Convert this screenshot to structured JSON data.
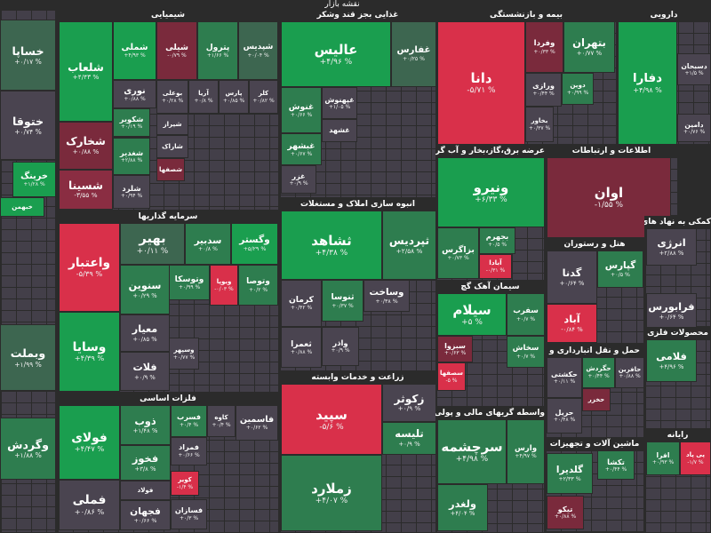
{
  "title": "نقشه بازار",
  "sectors": [
    {
      "tiles": [
        {
          "name": "خساپا",
          "change": "+۰/۱۷ %",
          "color": "#3d6650"
        },
        {
          "name": "ختوقا",
          "change": "+۰/۷۴ %",
          "color": "#4a4450"
        },
        {
          "name": "خرینگ",
          "change": "+۱/۲۸ %",
          "color": "#1a9e4f"
        },
        {
          "name": "خبهمن",
          "change": "+۱/۳۸ %",
          "color": "#1a9e4f"
        },
        {
          "name": "وبملت",
          "change": "+۱/۹۹ %",
          "color": "#3d6650"
        },
        {
          "name": "وگردش",
          "change": "+۱/۸۸ %",
          "color": "#2e7d4f"
        }
      ]
    },
    {
      "title": "شیمیایی",
      "tiles": [
        {
          "name": "شلعاب",
          "change": "+۴/۴۳ %",
          "color": "#1a9e4f"
        },
        {
          "name": "شخارک",
          "change": "+۰/۸۸ %",
          "color": "#7a2a3c"
        },
        {
          "name": "شسینا",
          "change": "-۳/۵۵ %",
          "color": "#8a2d42"
        },
        {
          "name": "شملی",
          "change": "+۴/۹۳ %",
          "color": "#1a9e4f"
        },
        {
          "name": "شیلی",
          "change": "-۰/۷۹ %",
          "color": "#7a2a3c"
        },
        {
          "name": "پترول",
          "change": "+۱/۶۶ %",
          "color": "#2e7d4f"
        },
        {
          "name": "شپدیس",
          "change": "+۰/۰۴ %",
          "color": "#3d6650"
        },
        {
          "name": "نوری",
          "change": "+۰/۸۸ %",
          "color": "#4a4450"
        },
        {
          "name": "بوعلی",
          "change": "+۰/۲۸ %",
          "color": "#4a4450"
        },
        {
          "name": "آریا",
          "change": "+۰/۸ %",
          "color": "#4a4450"
        },
        {
          "name": "پارس",
          "change": "+۰/۸۵ %",
          "color": "#4a4450"
        },
        {
          "name": "کلر",
          "change": "+۰/۸۲ %",
          "color": "#4a4450"
        },
        {
          "name": "شکویر",
          "change": "+۰/۱۹ %",
          "color": "#2e7d4f"
        },
        {
          "name": "شیراز",
          "change": "+۰/۴ %",
          "color": "#4a4450"
        },
        {
          "name": "شغدیر",
          "change": "+۲/۸۸ %",
          "color": "#2e7d4f"
        },
        {
          "name": "شاراک",
          "change": "+۰/۷۹ %",
          "color": "#4a4450"
        },
        {
          "name": "شصفها",
          "change": "-۰/۷ %",
          "color": "#7a2a3c"
        },
        {
          "name": "شلرد",
          "change": "+۰/۹۴ %",
          "color": "#4a4450"
        }
      ]
    },
    {
      "title": "غذایی بجز قند وشکر",
      "tiles": [
        {
          "name": "عالیس",
          "change": "+۴/۹۶ %",
          "color": "#1a9e4f"
        },
        {
          "name": "غفارس",
          "change": "+۰/۲۵ %",
          "color": "#3d6650"
        },
        {
          "name": "غنوش",
          "change": "+۰/۶۶ %",
          "color": "#2e7d4f"
        },
        {
          "name": "غپهنوش",
          "change": "+۱/۰۵ %",
          "color": "#4a4450"
        },
        {
          "name": "غشهد",
          "change": "+۰/۴ %",
          "color": "#4a4450"
        },
        {
          "name": "غبشهر",
          "change": "+۰/۶۷ %",
          "color": "#2e7d4f"
        },
        {
          "name": "غزر",
          "change": "+۰/۹ %",
          "color": "#4a4450"
        }
      ]
    },
    {
      "title": "بیمه و بازنشستگی",
      "tiles": [
        {
          "name": "دانا",
          "change": "-۵/۷۱ %",
          "color": "#d9304a"
        },
        {
          "name": "وفردا",
          "change": "+۰/۳۳ %",
          "color": "#7a2a3c"
        },
        {
          "name": "بتهران",
          "change": "+۰/۷۷ %",
          "color": "#2e7d4f"
        },
        {
          "name": "ورازی",
          "change": "+۰/۴۴ %",
          "color": "#4a4450"
        },
        {
          "name": "دوین",
          "change": "+۰/۹۹ %",
          "color": "#2e7d4f"
        },
        {
          "name": "بخاور",
          "change": "+۰/۳۷ %",
          "color": "#4a4450"
        }
      ]
    },
    {
      "title": "دارویی",
      "tiles": [
        {
          "name": "دفارا",
          "change": "+۴/۹۸ %",
          "color": "#1a9e4f"
        },
        {
          "name": "دسبحان",
          "change": "+۱/۵ %",
          "color": "#4a4450"
        },
        {
          "name": "دامین",
          "change": "+۰/۷۶ %",
          "color": "#4a4450"
        }
      ]
    },
    {
      "title": "عرضه برق،گاز،بخار و آب گرم",
      "tiles": [
        {
          "name": "ونیرو",
          "change": "+۶/۳۳ %",
          "color": "#1a9e4f"
        },
        {
          "name": "بزاگرس",
          "change": "+۰/۷۳ %",
          "color": "#2e7d4f"
        },
        {
          "name": "بجهرم",
          "change": "+۰/۵ %",
          "color": "#2e7d4f"
        },
        {
          "name": "آبادا",
          "change": "-۰/۳۱ %",
          "color": "#d9304a"
        }
      ]
    },
    {
      "title": "اطلاعات و ارتباطات",
      "tiles": [
        {
          "name": "اوان",
          "change": "-۱/۵۵ %",
          "color": "#7a2a3c"
        }
      ]
    },
    {
      "title": "سرمایه گذاریها",
      "tiles": [
        {
          "name": "واعتبار",
          "change": "-۵/۳۹ %",
          "color": "#d9304a"
        },
        {
          "name": "وسایا",
          "change": "+۴/۳۹ %",
          "color": "#1a9e4f"
        },
        {
          "name": "بهیر",
          "change": "+۰/۱۱ %",
          "color": "#3d6650"
        },
        {
          "name": "سدبیر",
          "change": "+۰/۸ %",
          "color": "#2e7d4f"
        },
        {
          "name": "وگستر",
          "change": "+۵/۲۹ %",
          "color": "#1a9e4f"
        },
        {
          "name": "سنوین",
          "change": "+۰/۲۹ %",
          "color": "#2e7d4f"
        },
        {
          "name": "وتوسکا",
          "change": "+۰/۹۹ %",
          "color": "#2e7d4f"
        },
        {
          "name": "ویوپا",
          "change": "-۰/۰۳ %",
          "color": "#d9304a"
        },
        {
          "name": "وتوصا",
          "change": "+۰/۲ %",
          "color": "#2e7d4f"
        },
        {
          "name": "معیار",
          "change": "+۰/۸۵ %",
          "color": "#4a4450"
        },
        {
          "name": "وسپهر",
          "change": "+۰/۷۷ %",
          "color": "#4a4450"
        },
        {
          "name": "فلات",
          "change": "+۰/۹ %",
          "color": "#4a4450"
        }
      ]
    },
    {
      "title": "فلزات اساسی",
      "tiles": [
        {
          "name": "فولای",
          "change": "+۴/۴۷ %",
          "color": "#1a9e4f"
        },
        {
          "name": "فملی",
          "change": "+۰/۸۶ %",
          "color": "#4a4450"
        },
        {
          "name": "ذوب",
          "change": "+۱/۴۸ %",
          "color": "#2e7d4f"
        },
        {
          "name": "فسرب",
          "change": "+۰/۴ %",
          "color": "#2e7d4f"
        },
        {
          "name": "کاوه",
          "change": "+۰/۴ %",
          "color": "#4a4450"
        },
        {
          "name": "فاسمین",
          "change": "+۰/۶۲ %",
          "color": "#4a4450"
        },
        {
          "name": "فخوز",
          "change": "+۳/۸ %",
          "color": "#2e7d4f"
        },
        {
          "name": "فمراد",
          "change": "+۰/۶۶ %",
          "color": "#4a4450"
        },
        {
          "name": "فولاد",
          "change": "+۰/۳۱ %",
          "color": "#4a4450"
        },
        {
          "name": "کویر",
          "change": "-۱/۴ %",
          "color": "#d9304a"
        },
        {
          "name": "فجهان",
          "change": "+۰/۶۶ %",
          "color": "#4a4450"
        },
        {
          "name": "فسازان",
          "change": "+۰/۳ %",
          "color": "#4a4450"
        }
      ]
    },
    {
      "title": "انبوه سازی املاک و مستغلات",
      "tiles": [
        {
          "name": "ثشاهد",
          "change": "+۴/۳۸ %",
          "color": "#1a9e4f"
        },
        {
          "name": "ثپردیس",
          "change": "+۲/۵۸ %",
          "color": "#2e7d4f"
        },
        {
          "name": "کرمان",
          "change": "+۰/۴۲ %",
          "color": "#4a4450"
        },
        {
          "name": "ثنوسا",
          "change": "+۰/۳۷ %",
          "color": "#2e7d4f"
        },
        {
          "name": "وساخت",
          "change": "+۰/۳۸ %",
          "color": "#4a4450"
        },
        {
          "name": "ثعمرا",
          "change": "+۰/۸۸ %",
          "color": "#4a4450"
        },
        {
          "name": "واذر",
          "change": "+۰/۹ %",
          "color": "#4a4450"
        }
      ]
    },
    {
      "title": "زراعت و خدمات وابسته",
      "tiles": [
        {
          "name": "سپید",
          "change": "-۵/۶ %",
          "color": "#d9304a"
        },
        {
          "name": "زکوثر",
          "change": "+۰/۹ %",
          "color": "#4a4450"
        },
        {
          "name": "تلیسه",
          "change": "+۰/۹ %",
          "color": "#2e7d4f"
        },
        {
          "name": "زملارد",
          "change": "+۴/۰۷ %",
          "color": "#2e7d4f"
        }
      ]
    },
    {
      "title": "سیمان آهک گچ",
      "tiles": [
        {
          "name": "سیلام",
          "change": "+۵ %",
          "color": "#1a9e4f"
        },
        {
          "name": "سفرب",
          "change": "+۰/۷ %",
          "color": "#2e7d4f"
        },
        {
          "name": "سبزوا",
          "change": "+۰/۶۳ %",
          "color": "#7a2a3c"
        },
        {
          "name": "سصفها",
          "change": "-۵ %",
          "color": "#d9304a"
        },
        {
          "name": "سخاش",
          "change": "+۰/۷ %",
          "color": "#2e7d4f"
        }
      ]
    },
    {
      "title": "واسطه گریهای مالی و پولی",
      "tiles": [
        {
          "name": "سرچشمه",
          "change": "+۴/۹۸ %",
          "color": "#2e7d4f"
        },
        {
          "name": "وارس",
          "change": "+۴/۹۷ %",
          "color": "#2e7d4f"
        },
        {
          "name": "ولغدر",
          "change": "+۴/۰۴ %",
          "color": "#2e7d4f"
        }
      ]
    },
    {
      "title": "هتل و رستوران",
      "tiles": [
        {
          "name": "گدنا",
          "change": "+۰/۶۴ %",
          "color": "#4a4450"
        },
        {
          "name": "گپارس",
          "change": "+۰/۵ %",
          "color": "#2e7d4f"
        },
        {
          "name": "آباد",
          "change": "-۰/۸۴ %",
          "color": "#d9304a"
        }
      ]
    },
    {
      "title": "کمکی به نهاد های مالی",
      "tiles": [
        {
          "name": "انرژی",
          "change": "+۲/۸۸ %",
          "color": "#4a4450"
        },
        {
          "name": "فرابورس",
          "change": "+۰/۶۴ %",
          "color": "#4a4450"
        }
      ]
    },
    {
      "title": "حمل و نقل انبارداری و",
      "tiles": [
        {
          "name": "حکشتی",
          "change": "+۰/۱۱ %",
          "color": "#4a4450"
        },
        {
          "name": "حگردش",
          "change": "+۰/۴۴ %",
          "color": "#2e7d4f"
        },
        {
          "name": "حافرین",
          "change": "+۰/۸۸ %",
          "color": "#4a4450"
        },
        {
          "name": "حخزر",
          "change": "+۰/۳۹ %",
          "color": "#7a2a3c"
        },
        {
          "name": "حریل",
          "change": "+۰/۴۸ %",
          "color": "#4a4450"
        }
      ]
    },
    {
      "title": "ماشین آلات و تجهیزات",
      "tiles": [
        {
          "name": "تکشا",
          "change": "+۰/۴۴ %",
          "color": "#2e7d4f"
        },
        {
          "name": "گلدیرا",
          "change": "+۲/۳۳ %",
          "color": "#2e7d4f"
        },
        {
          "name": "تیکو",
          "change": "+۰/۸۸ %",
          "color": "#7a2a3c"
        }
      ]
    },
    {
      "title": "محصولات فلزی",
      "tiles": [
        {
          "name": "فلامی",
          "change": "+۴/۹۶ %",
          "color": "#2e7d4f"
        }
      ]
    },
    {
      "title": "رایانه",
      "tiles": [
        {
          "name": "افرا",
          "change": "+۰/۹۳ %",
          "color": "#2e7d4f"
        },
        {
          "name": "پی پاد",
          "change": "-۱/۷ %",
          "color": "#d9304a"
        }
      ]
    }
  ]
}
